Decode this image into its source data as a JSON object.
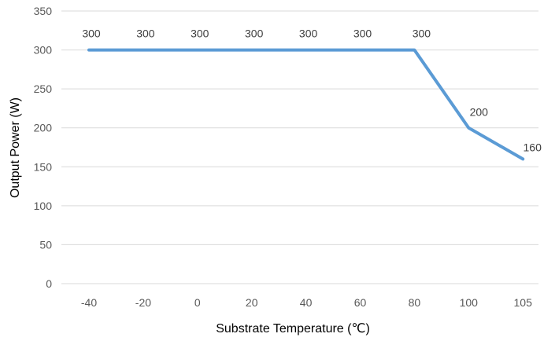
{
  "chart_data": {
    "type": "line",
    "categories": [
      "-40",
      "-20",
      "0",
      "20",
      "40",
      "60",
      "80",
      "100",
      "105"
    ],
    "series": [
      {
        "values": [
          300,
          300,
          300,
          300,
          300,
          300,
          300,
          200,
          160
        ],
        "color": "#5b9bd5"
      }
    ],
    "data_labels": [
      "300",
      "300",
      "300",
      "300",
      "300",
      "300",
      "300",
      "200",
      "160"
    ],
    "xlabel": "Substrate Temperature (℃)",
    "ylabel": "Output Power (W)",
    "ylim": [
      0,
      350
    ],
    "yticks": [
      0,
      50,
      100,
      150,
      200,
      250,
      300,
      350
    ],
    "ytick_labels": [
      "0",
      "50",
      "100",
      "150",
      "200",
      "250",
      "300",
      "350"
    ],
    "grid": true,
    "legend": "none"
  }
}
